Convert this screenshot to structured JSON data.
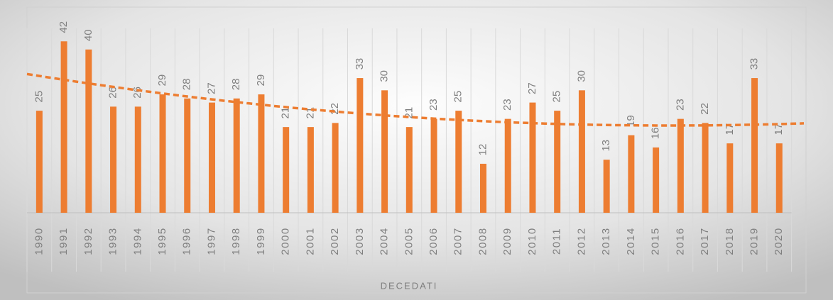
{
  "chart_data": {
    "type": "bar",
    "x_label": "DECEDATI",
    "categories": [
      "1990",
      "1991",
      "1992",
      "1993",
      "1994",
      "1995",
      "1996",
      "1997",
      "1998",
      "1999",
      "2000",
      "2001",
      "2002",
      "2003",
      "2004",
      "2005",
      "2006",
      "2007",
      "2008",
      "2009",
      "2010",
      "2011",
      "2012",
      "2013",
      "2014",
      "2015",
      "2016",
      "2017",
      "2018",
      "2019",
      "2020"
    ],
    "values": [
      25,
      42,
      40,
      26,
      26,
      29,
      28,
      27,
      28,
      29,
      21,
      21,
      22,
      33,
      30,
      21,
      23,
      25,
      12,
      23,
      27,
      25,
      30,
      13,
      19,
      16,
      23,
      22,
      17,
      33,
      17
    ],
    "color": "#ed7d31",
    "trendline": "polynomial",
    "ylim": [
      0,
      45
    ],
    "grid": true
  }
}
